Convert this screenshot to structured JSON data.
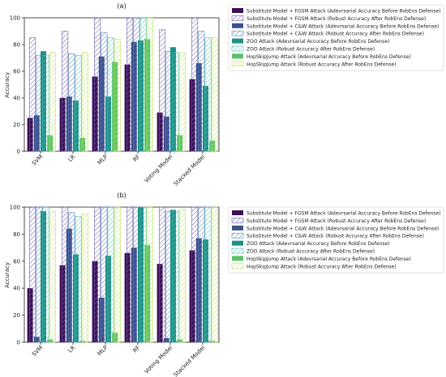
{
  "colors": {
    "fgsm": "#3b0f54",
    "cw": "#3d4f8c",
    "zoo": "#1f8f86",
    "hsj": "#58c26a",
    "fgsm_hatch": "#6b5aa8",
    "cw_hatch": "#5a7fb8",
    "zoo_hatch": "#4cc0b6",
    "hsj_hatch": "#bde25a"
  },
  "chart_data": [
    {
      "type": "bar",
      "title": "(a)",
      "xlabel": "",
      "ylabel": "Accuracy",
      "ylim": [
        0,
        100
      ],
      "yticks": [
        "0",
        "20",
        "40",
        "60",
        "80",
        "100"
      ],
      "categories": [
        "SVM",
        "LR",
        "MLP",
        "RF",
        "Voting Model",
        "Stacked Model"
      ],
      "legend_position": "right",
      "series": [
        {
          "name": "Substitute Model + FGSM Attack (Adevrsarial Accuracy Before RobEns Defense)",
          "style": "solid",
          "color": "fgsm",
          "values": [
            25,
            40,
            56,
            65,
            29,
            54
          ]
        },
        {
          "name": "Substitute Model + FGSM Attack (Robust Accuracy After RobEns Defense)",
          "style": "hatch",
          "color": "fgsm_hatch",
          "values": [
            85,
            90,
            100,
            100,
            91,
            100
          ]
        },
        {
          "name": "Substitute Model + C&W Attack (Adevrsarial Accuracy Before RobEns Defense)",
          "style": "solid",
          "color": "cw",
          "values": [
            27,
            41,
            71,
            82,
            26,
            66
          ]
        },
        {
          "name": "Substitute Model + C&W Attack (Robust Accuracy After RobEns Defense)",
          "style": "hatch",
          "color": "cw_hatch",
          "values": [
            72,
            73,
            89,
            100,
            75,
            90
          ]
        },
        {
          "name": "ZOO Attack (Adevrsarial Accuracy Before RobEns Defense)",
          "style": "solid",
          "color": "zoo",
          "values": [
            75,
            38,
            41,
            83,
            78,
            49
          ]
        },
        {
          "name": "ZOO Attack (Robust Accuracy After RobEns Defense)",
          "style": "hatch",
          "color": "zoo_hatch",
          "values": [
            72,
            72,
            85,
            100,
            74,
            85
          ]
        },
        {
          "name": "HopSkipJump Attack (Adevrsarial Accuracy Before RobEns Defense)",
          "style": "solid",
          "color": "hsj",
          "values": [
            12,
            10,
            67,
            84,
            12,
            8
          ]
        },
        {
          "name": "HopSkipJump Attack (Robust Accuracy After RobEns Defense)",
          "style": "hatch",
          "color": "hsj_hatch",
          "values": [
            74,
            74,
            84,
            100,
            74,
            85
          ]
        }
      ]
    },
    {
      "type": "bar",
      "title": "(b)",
      "xlabel": "",
      "ylabel": "Accuracy",
      "ylim": [
        0,
        100
      ],
      "yticks": [
        "0",
        "20",
        "40",
        "60",
        "80",
        "100"
      ],
      "categories": [
        "SVM",
        "LR",
        "MLP",
        "RF",
        "Voting Model",
        "Stacked Model"
      ],
      "legend_position": "right",
      "series": [
        {
          "name": "Substitute Model + FGSM Attack (Adevrsarial Accuracy Before RobEns Defense)",
          "style": "solid",
          "color": "fgsm",
          "values": [
            40,
            57,
            60,
            66,
            58,
            68
          ]
        },
        {
          "name": "Substitute Model + FGSM Attack (Robust Accuracy After RobEns Defense)",
          "style": "hatch",
          "color": "fgsm_hatch",
          "values": [
            100,
            100,
            100,
            100,
            100,
            100
          ]
        },
        {
          "name": "Substitute Model + C&W Attack (Adevrsarial Accuracy Before RobEns Defense)",
          "style": "solid",
          "color": "cw",
          "values": [
            4,
            84,
            33,
            70,
            3,
            77
          ]
        },
        {
          "name": "Substitute Model + C&W Attack (Robust Accuracy After RobEns Defense)",
          "style": "hatch",
          "color": "cw_hatch",
          "values": [
            100,
            96,
            100,
            100,
            97,
            100
          ]
        },
        {
          "name": "ZOO Attack (Adevrsarial Accuracy Before RobEns Defense)",
          "style": "solid",
          "color": "zoo",
          "values": [
            97,
            65,
            64,
            100,
            98,
            76
          ]
        },
        {
          "name": "ZOO Attack (Robust Accuracy After RobEns Defense)",
          "style": "hatch",
          "color": "zoo_hatch",
          "values": [
            100,
            93,
            100,
            100,
            97,
            100
          ]
        },
        {
          "name": "HopSkipJump Attack (Adevrsarial Accuracy Before RobEns Defense)",
          "style": "solid",
          "color": "hsj",
          "values": [
            2,
            1,
            7,
            72,
            2,
            1
          ]
        },
        {
          "name": "HopSkipJump Attack (Robust Accuracy After RobEns Defense)",
          "style": "hatch",
          "color": "hsj_hatch",
          "values": [
            97,
            95,
            100,
            100,
            98,
            100
          ]
        }
      ]
    }
  ]
}
